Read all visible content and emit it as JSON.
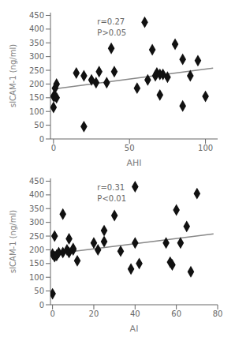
{
  "chart_data": [
    {
      "type": "scatter",
      "xlabel": "AHI",
      "ylabel": "sICAM-1 (ng/ml)",
      "annotations": [
        "r=0.27\nP>0.05"
      ],
      "xlim": [
        -2,
        108
      ],
      "ylim": [
        0,
        460
      ],
      "xticks": [
        0,
        50,
        100
      ],
      "yticks": [
        0,
        50,
        100,
        150,
        200,
        250,
        300,
        350,
        400,
        450
      ],
      "series": [
        {
          "type": "line",
          "color": "#888888",
          "x": [
            0,
            105
          ],
          "values": [
            182,
            258
          ]
        },
        {
          "type": "scatter",
          "marker": "diamond",
          "color": "#111111",
          "x": [
            0,
            0,
            1,
            1,
            2,
            2,
            15,
            20,
            20,
            25,
            28,
            30,
            35,
            38,
            40,
            55,
            60,
            62,
            65,
            67,
            68,
            70,
            70,
            72,
            75,
            80,
            85,
            85,
            90,
            95,
            100
          ],
          "values": [
            155,
            115,
            185,
            155,
            200,
            150,
            240,
            230,
            45,
            215,
            205,
            245,
            205,
            330,
            245,
            185,
            425,
            215,
            325,
            230,
            240,
            160,
            235,
            235,
            225,
            345,
            290,
            120,
            230,
            285,
            155
          ]
        }
      ]
    },
    {
      "type": "scatter",
      "xlabel": "AI",
      "ylabel": "sICAM-1 (ng/ml)",
      "annotations": [
        "r=0.31\nP<0.01"
      ],
      "xlim": [
        -1,
        80
      ],
      "ylim": [
        0,
        460
      ],
      "xticks": [
        0,
        20,
        40,
        60,
        80
      ],
      "yticks": [
        0,
        50,
        100,
        150,
        200,
        250,
        300,
        350,
        400,
        450
      ],
      "series": [
        {
          "type": "line",
          "color": "#888888",
          "x": [
            0,
            78
          ],
          "values": [
            185,
            258
          ]
        },
        {
          "type": "scatter",
          "marker": "diamond",
          "color": "#111111",
          "x": [
            0,
            0,
            1,
            1,
            2,
            2,
            3,
            5,
            5,
            7,
            8,
            8,
            10,
            10,
            12,
            20,
            22,
            25,
            25,
            30,
            33,
            38,
            40,
            40,
            42,
            55,
            57,
            58,
            60,
            62,
            65,
            67,
            70
          ],
          "values": [
            40,
            185,
            175,
            250,
            180,
            180,
            190,
            190,
            330,
            200,
            240,
            190,
            205,
            200,
            160,
            225,
            200,
            230,
            270,
            325,
            195,
            130,
            430,
            225,
            150,
            225,
            155,
            145,
            345,
            225,
            285,
            120,
            405
          ]
        }
      ]
    }
  ]
}
